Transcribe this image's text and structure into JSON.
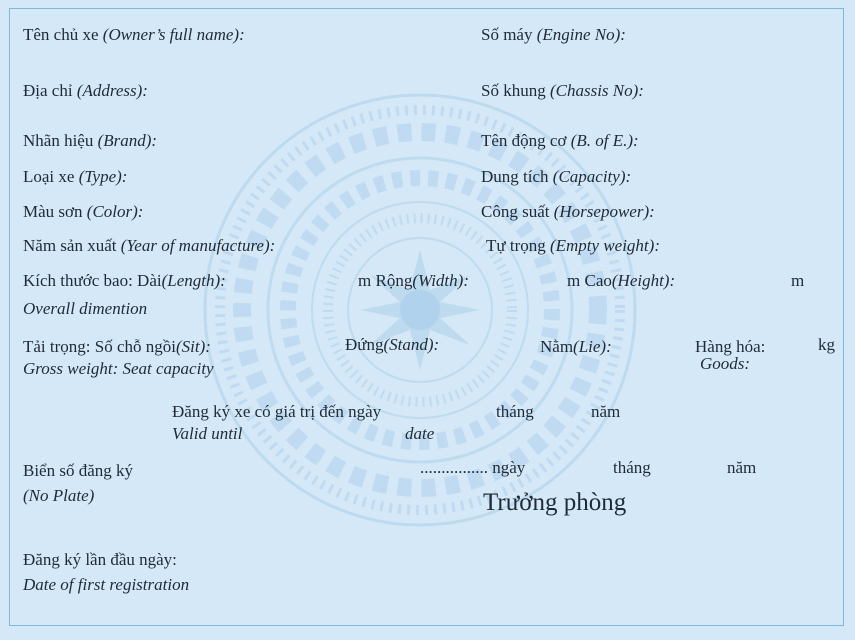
{
  "owner": {
    "vi": "Tên chủ xe",
    "en": "(Owner’s full name):"
  },
  "address": {
    "vi": "Địa chỉ",
    "en": "(Address):"
  },
  "brand": {
    "vi": "Nhãn hiệu",
    "en": "(Brand):"
  },
  "type": {
    "vi": "Loại xe",
    "en": "(Type):"
  },
  "color": {
    "vi": "Màu sơn",
    "en": "(Color):"
  },
  "year": {
    "vi": "Năm sản xuất",
    "en": "(Year of manufacture):"
  },
  "engine_no": {
    "vi": "Số máy",
    "en": "(Engine No):"
  },
  "chassis_no": {
    "vi": "Số khung",
    "en": "(Chassis No):"
  },
  "engine_brand": {
    "vi": "Tên động cơ",
    "en": "(B. of E.):"
  },
  "capacity": {
    "vi": "Dung tích",
    "en": "(Capacity):"
  },
  "horsepower": {
    "vi": "Công suất",
    "en": "(Horsepower):"
  },
  "empty_weight": {
    "vi": "Tự trọng",
    "en": "(Empty weight):"
  },
  "dimensions": {
    "vi": "Kích thước bao: Dài",
    "length_en": "(Length):",
    "unit1": "m",
    "width_vi": "Rộng",
    "width_en": "(Width):",
    "unit2": "m",
    "height_vi": "Cao",
    "height_en": "(Height):",
    "unit3": "m",
    "en": "Overall dimention"
  },
  "load": {
    "vi": "Tải trọng: Số chỗ ngồi",
    "sit_en": "(Sit):",
    "stand_vi": "Đứng",
    "stand_en": "(Stand):",
    "lie_vi": "Nằm",
    "lie_en": "(Lie):",
    "goods_vi": "Hàng hóa:",
    "goods_unit": "kg",
    "goods_en": "Goods:",
    "en": "Gross weight: Seat capacity"
  },
  "valid": {
    "vi": "Đăng ký xe có giá trị đến ngày",
    "month": "tháng",
    "year": "năm",
    "en": "Valid until",
    "date_en": "date"
  },
  "plate": {
    "vi": "Biển số đăng ký",
    "en": "(No Plate)"
  },
  "issue": {
    "dots": "................",
    "day": "ngày",
    "month": "tháng",
    "year": "năm"
  },
  "signer": "Trưởng phòng",
  "first_reg": {
    "vi": "Đăng ký lần đầu ngày:",
    "en": "Date of first registration"
  },
  "colors": {
    "background": "#d4e8f7",
    "border": "#7fb6dd",
    "emblem": "#a9cde9",
    "text": "#1f2a36"
  }
}
